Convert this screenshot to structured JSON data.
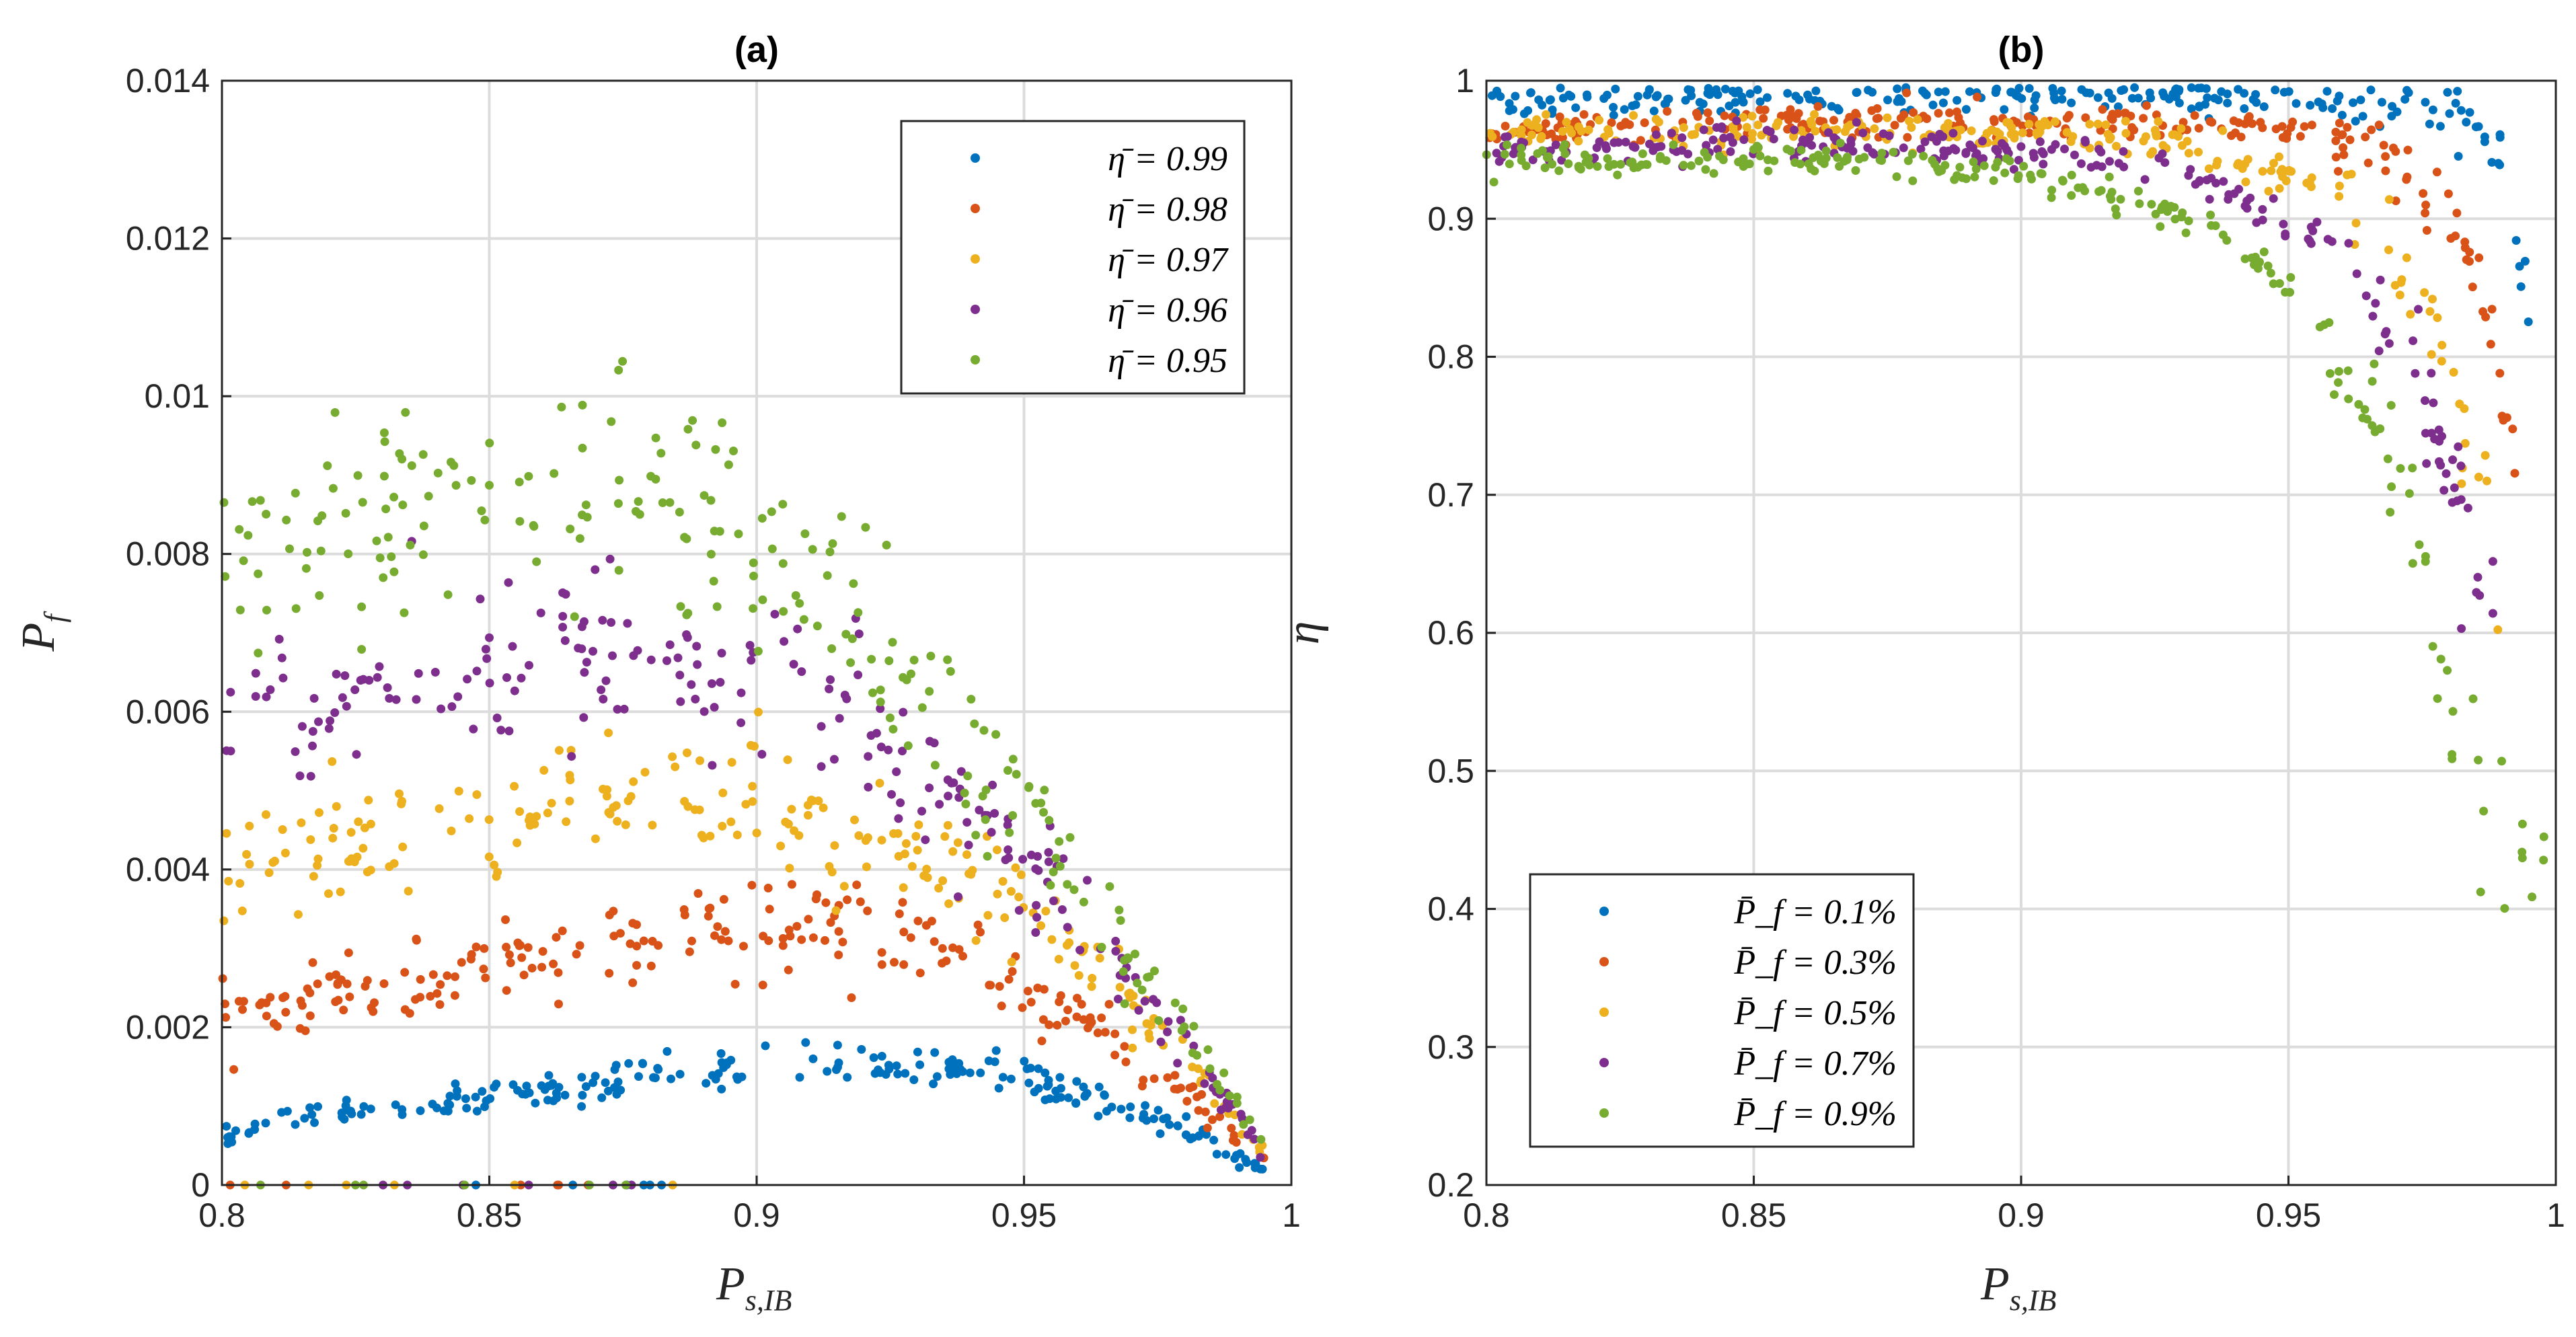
{
  "chart_data": [
    {
      "type": "scatter",
      "title": "(a)",
      "xlabel": "P_{s,IB}",
      "ylabel": "P_f",
      "xlim": [
        0.8,
        1
      ],
      "ylim": [
        0,
        0.014
      ],
      "xticks": [
        "0.8",
        "0.85",
        "0.9",
        "0.95",
        "1"
      ],
      "yticks": [
        "0",
        "0.002",
        "0.004",
        "0.006",
        "0.008",
        "0.01",
        "0.012",
        "0.014"
      ],
      "grid": true,
      "legend_position": "top-right",
      "series": [
        {
          "name": "η̄ = 0.99",
          "color": "#0072BD",
          "points": [
            [
              0.8,
              0.0006
            ],
            [
              0.81,
              0.0008
            ],
            [
              0.82,
              0.0009
            ],
            [
              0.84,
              0.001
            ],
            [
              0.86,
              0.0012
            ],
            [
              0.88,
              0.0014
            ],
            [
              0.9,
              0.0015
            ],
            [
              0.92,
              0.0016
            ],
            [
              0.94,
              0.0015
            ],
            [
              0.96,
              0.0012
            ],
            [
              0.98,
              0.0007
            ],
            [
              0.995,
              0.0002
            ]
          ]
        },
        {
          "name": "η̄ = 0.98",
          "color": "#D95319",
          "points": [
            [
              0.8,
              0.0021
            ],
            [
              0.82,
              0.0024
            ],
            [
              0.84,
              0.0026
            ],
            [
              0.86,
              0.0029
            ],
            [
              0.88,
              0.0031
            ],
            [
              0.9,
              0.0033
            ],
            [
              0.92,
              0.0032
            ],
            [
              0.94,
              0.0028
            ],
            [
              0.96,
              0.0021
            ],
            [
              0.98,
              0.0012
            ],
            [
              0.995,
              0.0003
            ]
          ]
        },
        {
          "name": "η̄ = 0.97",
          "color": "#EDB120",
          "points": [
            [
              0.8,
              0.004
            ],
            [
              0.82,
              0.0042
            ],
            [
              0.84,
              0.0044
            ],
            [
              0.86,
              0.0046
            ],
            [
              0.88,
              0.0048
            ],
            [
              0.9,
              0.0049
            ],
            [
              0.92,
              0.0046
            ],
            [
              0.94,
              0.004
            ],
            [
              0.96,
              0.003
            ],
            [
              0.98,
              0.0016
            ],
            [
              0.995,
              0.0004
            ]
          ]
        },
        {
          "name": "η̄ = 0.96",
          "color": "#7E2F8E",
          "points": [
            [
              0.8,
              0.006
            ],
            [
              0.82,
              0.0062
            ],
            [
              0.84,
              0.0064
            ],
            [
              0.86,
              0.0066
            ],
            [
              0.88,
              0.0066
            ],
            [
              0.9,
              0.0064
            ],
            [
              0.92,
              0.0058
            ],
            [
              0.94,
              0.0048
            ],
            [
              0.96,
              0.0034
            ],
            [
              0.98,
              0.0018
            ],
            [
              0.995,
              0.0004
            ]
          ]
        },
        {
          "name": "η̄ = 0.95",
          "color": "#77AC30",
          "points": [
            [
              0.8,
              0.008
            ],
            [
              0.82,
              0.0082
            ],
            [
              0.84,
              0.0085
            ],
            [
              0.86,
              0.0087
            ],
            [
              0.88,
              0.0087
            ],
            [
              0.9,
              0.0081
            ],
            [
              0.92,
              0.007
            ],
            [
              0.94,
              0.0055
            ],
            [
              0.96,
              0.0038
            ],
            [
              0.98,
              0.002
            ],
            [
              0.995,
              0.0005
            ]
          ]
        }
      ]
    },
    {
      "type": "scatter",
      "title": "(b)",
      "xlabel": "P_{s,IB}",
      "ylabel": "η",
      "xlim": [
        0.8,
        1
      ],
      "ylim": [
        0.2,
        1
      ],
      "xticks": [
        "0.8",
        "0.85",
        "0.9",
        "0.95",
        "1"
      ],
      "yticks": [
        "0.2",
        "0.3",
        "0.4",
        "0.5",
        "0.6",
        "0.7",
        "0.8",
        "0.9",
        "1"
      ],
      "grid": true,
      "legend_position": "bottom-left",
      "series": [
        {
          "name": "P̄_f = 0.1%",
          "color": "#0072BD",
          "points": [
            [
              0.8,
              0.986
            ],
            [
              0.85,
              0.988
            ],
            [
              0.9,
              0.989
            ],
            [
              0.95,
              0.988
            ],
            [
              0.98,
              0.98
            ],
            [
              0.99,
              0.95
            ],
            [
              0.995,
              0.82
            ]
          ]
        },
        {
          "name": "P̄_f = 0.3%",
          "color": "#D95319",
          "points": [
            [
              0.8,
              0.965
            ],
            [
              0.85,
              0.97
            ],
            [
              0.9,
              0.972
            ],
            [
              0.95,
              0.965
            ],
            [
              0.97,
              0.94
            ],
            [
              0.985,
              0.87
            ],
            [
              0.995,
              0.68
            ]
          ]
        },
        {
          "name": "P̄_f = 0.5%",
          "color": "#EDB120",
          "points": [
            [
              0.8,
              0.96
            ],
            [
              0.85,
              0.962
            ],
            [
              0.9,
              0.962
            ],
            [
              0.93,
              0.955
            ],
            [
              0.96,
              0.92
            ],
            [
              0.98,
              0.8
            ],
            [
              0.99,
              0.62
            ]
          ]
        },
        {
          "name": "P̄_f = 0.7%",
          "color": "#7E2F8E",
          "points": [
            [
              0.8,
              0.95
            ],
            [
              0.85,
              0.955
            ],
            [
              0.9,
              0.95
            ],
            [
              0.93,
              0.935
            ],
            [
              0.96,
              0.88
            ],
            [
              0.975,
              0.78
            ],
            [
              0.99,
              0.55
            ]
          ]
        },
        {
          "name": "P̄_f = 0.9%",
          "color": "#77AC30",
          "points": [
            [
              0.8,
              0.942
            ],
            [
              0.85,
              0.945
            ],
            [
              0.9,
              0.935
            ],
            [
              0.93,
              0.905
            ],
            [
              0.95,
              0.85
            ],
            [
              0.97,
              0.72
            ],
            [
              0.99,
              0.4
            ],
            [
              1.0,
              0.5
            ]
          ]
        }
      ]
    }
  ]
}
